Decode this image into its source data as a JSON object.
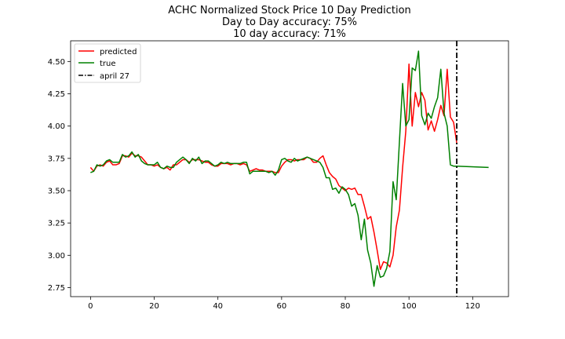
{
  "chart_data": {
    "type": "line",
    "title_lines": [
      "ACHC Normalized Stock Price 10 Day Prediction",
      "Day to Day accuracy: 75%",
      "10 day accuracy: 71%"
    ],
    "xlabel": "",
    "ylabel": "",
    "xlim": [
      -6.25,
      131.25
    ],
    "ylim": [
      2.68,
      4.66
    ],
    "xticks": [
      0,
      20,
      40,
      60,
      80,
      100,
      120
    ],
    "yticks": [
      2.75,
      3.0,
      3.25,
      3.5,
      3.75,
      4.0,
      4.25,
      4.5
    ],
    "grid": false,
    "legend_position": "top-left",
    "legend": [
      "predicted",
      "true",
      "april 27"
    ],
    "series": [
      {
        "name": "predicted",
        "color": "#ff0000",
        "x": [
          0,
          1,
          2,
          3,
          4,
          5,
          6,
          7,
          8,
          9,
          10,
          11,
          12,
          13,
          14,
          15,
          16,
          17,
          18,
          19,
          20,
          21,
          22,
          23,
          24,
          25,
          26,
          27,
          28,
          29,
          30,
          31,
          32,
          33,
          34,
          35,
          36,
          37,
          38,
          39,
          40,
          41,
          42,
          43,
          44,
          45,
          46,
          47,
          48,
          49,
          50,
          51,
          52,
          53,
          54,
          55,
          56,
          57,
          58,
          59,
          60,
          61,
          62,
          63,
          64,
          65,
          66,
          67,
          68,
          69,
          70,
          71,
          72,
          73,
          74,
          75,
          76,
          77,
          78,
          79,
          80,
          81,
          82,
          83,
          84,
          85,
          86,
          87,
          88,
          89,
          90,
          91,
          92,
          93,
          94,
          95,
          96,
          97,
          98,
          99,
          100,
          101,
          102,
          103,
          104,
          105,
          106,
          107,
          108,
          109,
          110,
          111,
          112,
          113,
          114,
          115
        ],
        "values": [
          3.68,
          3.65,
          3.69,
          3.7,
          3.69,
          3.72,
          3.73,
          3.7,
          3.7,
          3.71,
          3.77,
          3.77,
          3.76,
          3.79,
          3.77,
          3.77,
          3.76,
          3.73,
          3.7,
          3.7,
          3.69,
          3.7,
          3.68,
          3.67,
          3.68,
          3.66,
          3.7,
          3.7,
          3.72,
          3.74,
          3.74,
          3.72,
          3.74,
          3.74,
          3.74,
          3.73,
          3.72,
          3.72,
          3.7,
          3.69,
          3.69,
          3.71,
          3.71,
          3.71,
          3.7,
          3.71,
          3.71,
          3.7,
          3.71,
          3.7,
          3.65,
          3.66,
          3.67,
          3.66,
          3.66,
          3.65,
          3.65,
          3.65,
          3.64,
          3.64,
          3.69,
          3.72,
          3.74,
          3.74,
          3.73,
          3.74,
          3.74,
          3.74,
          3.76,
          3.75,
          3.72,
          3.72,
          3.75,
          3.77,
          3.7,
          3.64,
          3.61,
          3.59,
          3.54,
          3.52,
          3.5,
          3.52,
          3.51,
          3.52,
          3.47,
          3.47,
          3.38,
          3.28,
          3.3,
          3.18,
          3.04,
          2.89,
          2.95,
          2.94,
          2.91,
          3.0,
          3.22,
          3.35,
          3.68,
          3.96,
          4.48,
          4.0,
          4.26,
          4.15,
          4.26,
          4.2,
          3.97,
          4.04,
          3.96,
          4.05,
          4.16,
          4.08,
          4.44,
          4.07,
          4.03,
          3.87
        ]
      },
      {
        "name": "true",
        "color": "#008000",
        "x": [
          0,
          1,
          2,
          3,
          4,
          5,
          6,
          7,
          8,
          9,
          10,
          11,
          12,
          13,
          14,
          15,
          16,
          17,
          18,
          19,
          20,
          21,
          22,
          23,
          24,
          25,
          26,
          27,
          28,
          29,
          30,
          31,
          32,
          33,
          34,
          35,
          36,
          37,
          38,
          39,
          40,
          41,
          42,
          43,
          44,
          45,
          46,
          47,
          48,
          49,
          50,
          51,
          52,
          53,
          54,
          55,
          56,
          57,
          58,
          59,
          60,
          61,
          62,
          63,
          64,
          65,
          66,
          67,
          68,
          69,
          70,
          71,
          72,
          73,
          74,
          75,
          76,
          77,
          78,
          79,
          80,
          81,
          82,
          83,
          84,
          85,
          86,
          87,
          88,
          89,
          90,
          91,
          92,
          93,
          94,
          95,
          96,
          97,
          98,
          99,
          100,
          101,
          102,
          103,
          104,
          105,
          106,
          107,
          108,
          109,
          110,
          111,
          112,
          113,
          114,
          115,
          125
        ],
        "values": [
          3.64,
          3.65,
          3.7,
          3.69,
          3.7,
          3.73,
          3.74,
          3.72,
          3.72,
          3.72,
          3.78,
          3.76,
          3.77,
          3.8,
          3.76,
          3.78,
          3.73,
          3.71,
          3.7,
          3.7,
          3.7,
          3.72,
          3.68,
          3.67,
          3.69,
          3.68,
          3.68,
          3.72,
          3.74,
          3.76,
          3.74,
          3.71,
          3.75,
          3.73,
          3.76,
          3.71,
          3.73,
          3.73,
          3.71,
          3.69,
          3.7,
          3.72,
          3.71,
          3.72,
          3.71,
          3.71,
          3.71,
          3.71,
          3.72,
          3.72,
          3.63,
          3.65,
          3.65,
          3.65,
          3.65,
          3.65,
          3.64,
          3.65,
          3.62,
          3.66,
          3.74,
          3.75,
          3.73,
          3.72,
          3.75,
          3.73,
          3.74,
          3.75,
          3.76,
          3.75,
          3.74,
          3.73,
          3.72,
          3.68,
          3.6,
          3.6,
          3.51,
          3.52,
          3.48,
          3.53,
          3.51,
          3.47,
          3.38,
          3.4,
          3.31,
          3.12,
          3.28,
          3.04,
          2.94,
          2.76,
          2.92,
          2.83,
          2.84,
          2.9,
          3.03,
          3.57,
          3.43,
          3.88,
          4.33,
          4.0,
          4.05,
          4.45,
          4.43,
          4.58,
          4.08,
          4.01,
          4.1,
          4.06,
          4.15,
          4.22,
          4.44,
          4.1,
          4.0,
          3.7,
          3.69,
          3.69,
          3.68
        ]
      }
    ],
    "vline": {
      "name": "april 27",
      "x": 115,
      "color": "#000000",
      "style": "dashdot"
    }
  }
}
